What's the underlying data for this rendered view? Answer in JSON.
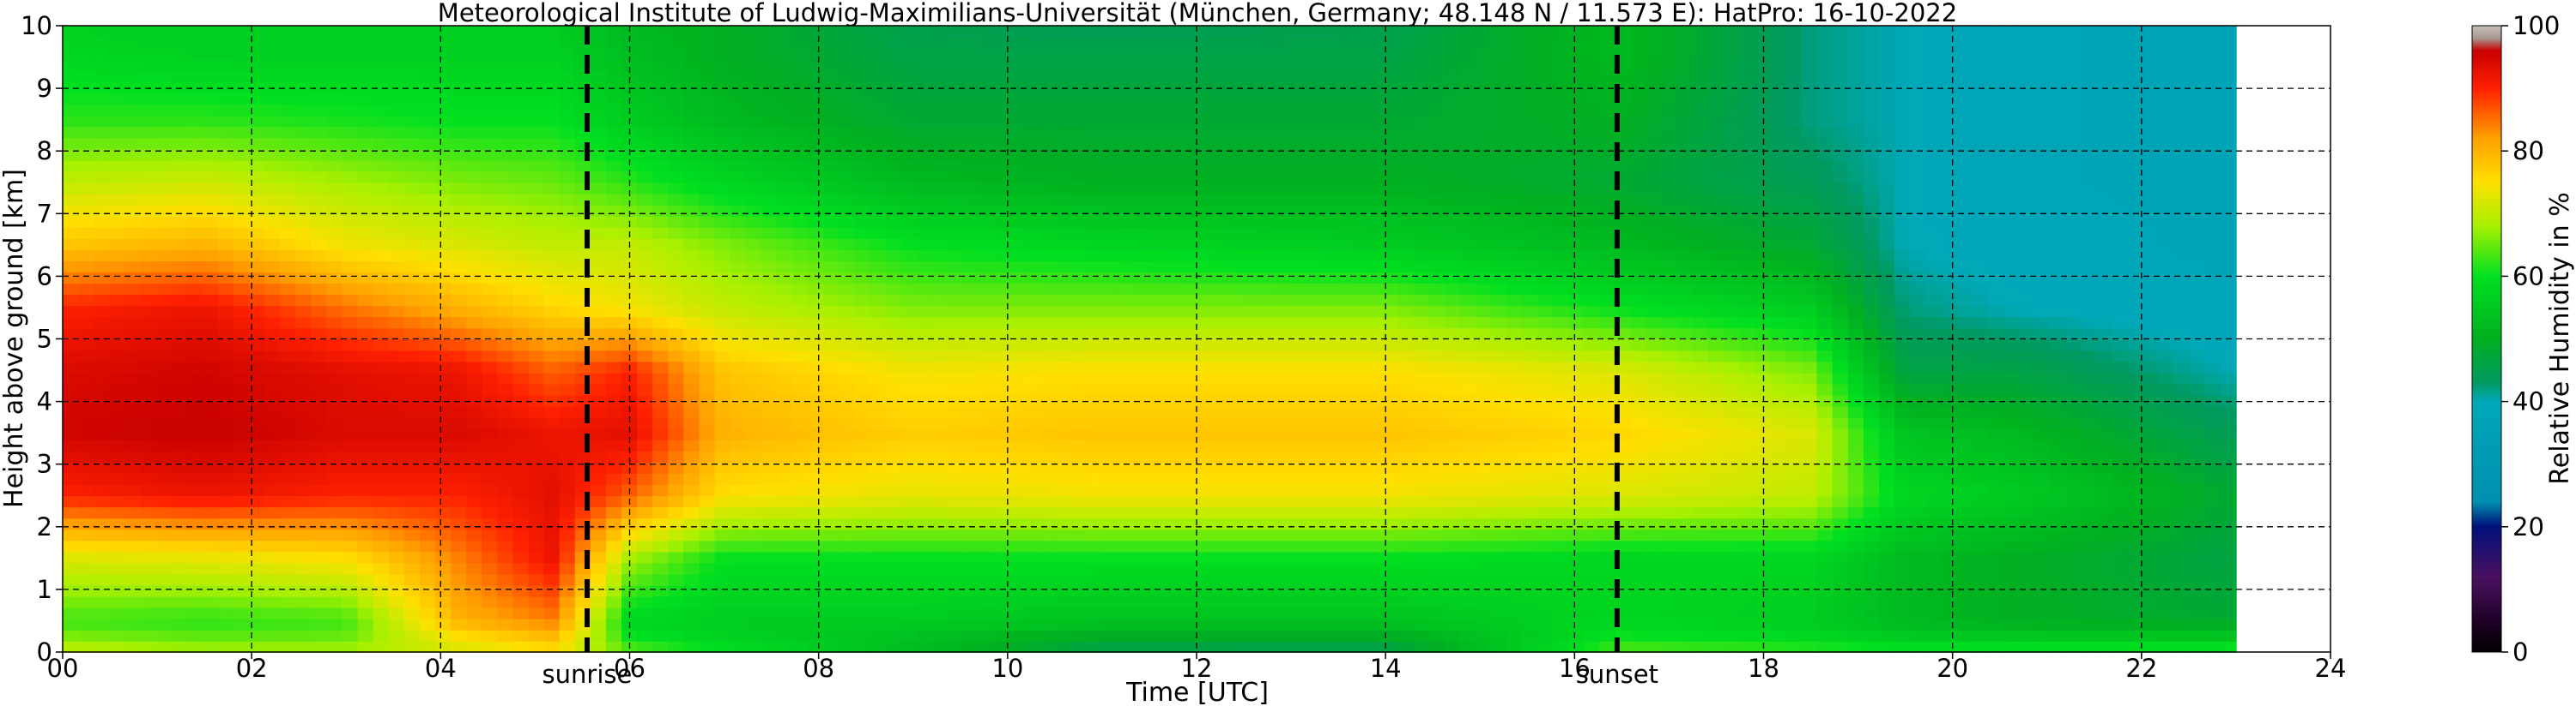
{
  "chart_data": {
    "type": "heatmap",
    "title": "Meteorological Institute of Ludwig-Maximilians-Universität (München, Germany; 48.148 N / 11.573 E):    HatPro: 16-10-2022",
    "xlabel": "Time [UTC]",
    "ylabel": "Height above ground [km]",
    "xlim": [
      0,
      24
    ],
    "ylim": [
      0,
      10
    ],
    "x_ticks": [
      "00",
      "02",
      "04",
      "06",
      "08",
      "10",
      "12",
      "14",
      "16",
      "18",
      "20",
      "22",
      "24"
    ],
    "y_ticks": [
      "0",
      "1",
      "2",
      "3",
      "4",
      "5",
      "6",
      "7",
      "8",
      "9",
      "10"
    ],
    "grid": true,
    "data_end_time": 23.0,
    "colorbar": {
      "label": "Relative Humidity in %",
      "ticks": [
        "0",
        "20",
        "40",
        "60",
        "80",
        "100"
      ],
      "range": [
        0,
        100
      ],
      "stops": [
        {
          "value": 0,
          "color": "#000000"
        },
        {
          "value": 4,
          "color": "#1a0020"
        },
        {
          "value": 12,
          "color": "#4a1060"
        },
        {
          "value": 20,
          "color": "#00107a"
        },
        {
          "value": 24,
          "color": "#0090b0"
        },
        {
          "value": 40,
          "color": "#00a8b8"
        },
        {
          "value": 43,
          "color": "#009a60"
        },
        {
          "value": 50,
          "color": "#00b020"
        },
        {
          "value": 60,
          "color": "#00e020"
        },
        {
          "value": 68,
          "color": "#a8f000"
        },
        {
          "value": 75,
          "color": "#ffe000"
        },
        {
          "value": 82,
          "color": "#ffa000"
        },
        {
          "value": 90,
          "color": "#ff2000"
        },
        {
          "value": 96,
          "color": "#c80000"
        },
        {
          "value": 98,
          "color": "#a89890"
        },
        {
          "value": 100,
          "color": "#c8c0b8"
        }
      ]
    },
    "markers": [
      {
        "label": "sunrise",
        "time": 5.55
      },
      {
        "label": "sunset",
        "time": 16.45
      }
    ],
    "rh_profile_keyframes": [
      {
        "t": 0.0,
        "h": [
          0,
          0.1,
          0.5,
          1.5,
          2.5,
          3.5,
          4.5,
          5.5,
          6.5,
          7.5,
          8.5,
          9.5,
          10
        ],
        "rh": [
          75,
          68,
          63,
          72,
          90,
          95,
          94,
          90,
          78,
          70,
          62,
          58,
          57
        ]
      },
      {
        "t": 1.5,
        "h": [
          0,
          0.1,
          0.5,
          1.5,
          2.5,
          3.5,
          4.5,
          5.5,
          6.5,
          7.5,
          8.5,
          9.5,
          10
        ],
        "rh": [
          75,
          66,
          62,
          73,
          92,
          96,
          95,
          92,
          80,
          71,
          62,
          57,
          56
        ]
      },
      {
        "t": 3.0,
        "h": [
          0,
          0.1,
          0.5,
          1.5,
          2.5,
          3.5,
          4.5,
          5.5,
          6.5,
          7.5,
          8.5,
          9.5,
          10
        ],
        "rh": [
          76,
          66,
          63,
          75,
          90,
          94,
          93,
          85,
          74,
          68,
          61,
          57,
          56
        ]
      },
      {
        "t": 4.2,
        "h": [
          0,
          0.1,
          0.5,
          1.5,
          2.5,
          3.5,
          4.5,
          5.5,
          6.5,
          7.5,
          8.5,
          9.5,
          10
        ],
        "rh": [
          78,
          72,
          80,
          84,
          90,
          94,
          92,
          80,
          72,
          66,
          60,
          57,
          56
        ]
      },
      {
        "t": 5.2,
        "h": [
          0,
          0.1,
          0.5,
          1.5,
          2.5,
          3.5,
          4.5,
          5.5,
          6.5,
          7.5,
          8.5,
          9.5,
          10
        ],
        "rh": [
          78,
          76,
          84,
          92,
          93,
          92,
          86,
          76,
          70,
          65,
          60,
          57,
          56
        ]
      },
      {
        "t": 6.0,
        "h": [
          0,
          0.1,
          0.5,
          1.5,
          2.5,
          3.5,
          4.5,
          5.5,
          6.5,
          7.5,
          8.5,
          9.5,
          10
        ],
        "rh": [
          72,
          62,
          58,
          68,
          86,
          93,
          90,
          74,
          70,
          62,
          56,
          53,
          52
        ]
      },
      {
        "t": 7.0,
        "h": [
          0,
          0.1,
          0.5,
          1.5,
          2.5,
          3.5,
          4.5,
          5.5,
          6.5,
          7.5,
          8.5,
          9.5,
          10
        ],
        "rh": [
          68,
          58,
          56,
          60,
          75,
          80,
          78,
          70,
          66,
          58,
          52,
          50,
          50
        ]
      },
      {
        "t": 9.0,
        "h": [
          0,
          0.1,
          0.5,
          1.5,
          2.5,
          3.5,
          4.5,
          5.5,
          6.5,
          7.5,
          8.5,
          9.5,
          10
        ],
        "rh": [
          60,
          52,
          56,
          60,
          73,
          77,
          74,
          66,
          60,
          52,
          48,
          46,
          45
        ]
      },
      {
        "t": 11.0,
        "h": [
          0,
          0.1,
          0.5,
          1.5,
          2.5,
          3.5,
          4.5,
          5.5,
          6.5,
          7.5,
          8.5,
          9.5,
          10
        ],
        "rh": [
          50,
          46,
          54,
          60,
          74,
          78,
          75,
          66,
          58,
          50,
          48,
          46,
          44
        ]
      },
      {
        "t": 14.0,
        "h": [
          0,
          0.1,
          0.5,
          1.5,
          2.5,
          3.5,
          4.5,
          5.5,
          6.5,
          7.5,
          8.5,
          9.5,
          10
        ],
        "rh": [
          48,
          46,
          54,
          60,
          74,
          78,
          75,
          66,
          56,
          50,
          48,
          46,
          45
        ]
      },
      {
        "t": 16.5,
        "h": [
          0,
          0.1,
          0.5,
          1.5,
          2.5,
          3.5,
          4.5,
          5.5,
          6.5,
          7.5,
          8.5,
          9.5,
          10
        ],
        "rh": [
          70,
          62,
          58,
          58,
          72,
          76,
          72,
          60,
          52,
          48,
          50,
          52,
          52
        ]
      },
      {
        "t": 18.5,
        "h": [
          0,
          0.1,
          0.5,
          1.5,
          2.5,
          3.5,
          4.5,
          5.5,
          6.5,
          7.5,
          8.5,
          9.5,
          10
        ],
        "rh": [
          70,
          60,
          56,
          58,
          70,
          72,
          66,
          56,
          48,
          44,
          42,
          42,
          42
        ]
      },
      {
        "t": 19.5,
        "h": [
          0,
          0.1,
          0.5,
          1.5,
          2.5,
          3.5,
          4.5,
          5.5,
          6.5,
          7.5,
          8.5,
          9.5,
          10
        ],
        "rh": [
          70,
          58,
          52,
          52,
          58,
          54,
          46,
          42,
          40,
          40,
          40,
          40,
          40
        ]
      },
      {
        "t": 20.6,
        "h": [
          0,
          0.1,
          0.5,
          1.5,
          2.5,
          3.5,
          4.5,
          5.5,
          6.5,
          7.5,
          8.5,
          9.5,
          10
        ],
        "rh": [
          70,
          58,
          50,
          50,
          56,
          52,
          46,
          40,
          39,
          38,
          38,
          38,
          38
        ]
      },
      {
        "t": 23.0,
        "h": [
          0,
          0.1,
          0.5,
          1.5,
          2.5,
          3.5,
          4.5,
          5.5,
          6.5,
          7.5,
          8.5,
          9.5,
          10
        ],
        "rh": [
          72,
          58,
          48,
          46,
          48,
          44,
          40,
          38,
          37,
          37,
          37,
          37,
          37
        ]
      }
    ]
  }
}
